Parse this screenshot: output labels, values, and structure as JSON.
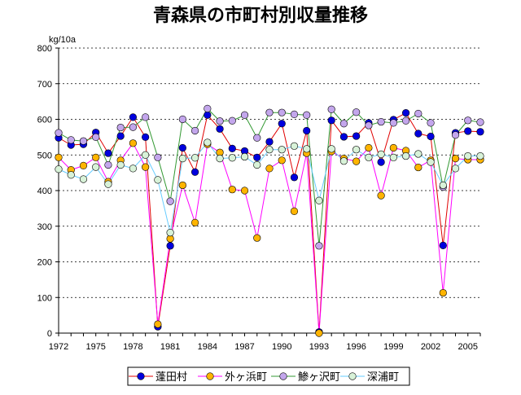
{
  "chart_data": {
    "type": "line",
    "title": "青森県の市町村別収量推移",
    "ylabel": "kg/10a",
    "ylim": [
      0,
      800
    ],
    "yticks": [
      0,
      100,
      200,
      300,
      400,
      500,
      600,
      700,
      800
    ],
    "xlim": [
      1972,
      2006
    ],
    "xticks": [
      1972,
      1975,
      1978,
      1981,
      1984,
      1987,
      1990,
      1993,
      1996,
      1999,
      2002,
      2005
    ],
    "x": [
      1972,
      1973,
      1974,
      1975,
      1976,
      1977,
      1978,
      1979,
      1980,
      1981,
      1982,
      1983,
      1984,
      1985,
      1986,
      1987,
      1988,
      1989,
      1990,
      1991,
      1992,
      1993,
      1994,
      1995,
      1996,
      1997,
      1998,
      1999,
      2000,
      2001,
      2002,
      2003,
      2004,
      2005,
      2006
    ],
    "series": [
      {
        "name": "蓬田村",
        "color": "#e00000",
        "marker": "#0000dd",
        "values": [
          548,
          528,
          530,
          563,
          505,
          553,
          606,
          550,
          18,
          245,
          520,
          452,
          612,
          573,
          518,
          511,
          493,
          537,
          588,
          437,
          568,
          3,
          597,
          551,
          553,
          590,
          480,
          599,
          618,
          560,
          552,
          246,
          562,
          567,
          565
        ]
      },
      {
        "name": "外ヶ浜町",
        "color": "#ff00ff",
        "marker": "#ffb400",
        "values": [
          493,
          458,
          470,
          493,
          425,
          485,
          533,
          466,
          25,
          265,
          415,
          310,
          530,
          507,
          403,
          400,
          267,
          462,
          485,
          342,
          505,
          0,
          510,
          490,
          482,
          520,
          386,
          520,
          512,
          465,
          485,
          113,
          490,
          487,
          487
        ]
      },
      {
        "name": "鯵ヶ沢町",
        "color": "#339933",
        "marker": "#c3a6ec",
        "values": [
          562,
          542,
          539,
          550,
          472,
          577,
          578,
          606,
          493,
          370,
          600,
          568,
          630,
          595,
          596,
          612,
          548,
          619,
          619,
          614,
          612,
          245,
          628,
          588,
          620,
          583,
          593,
          590,
          596,
          616,
          590,
          410,
          556,
          597,
          592
        ]
      },
      {
        "name": "深浦町",
        "color": "#66ccff",
        "marker": "#d8f2d8",
        "values": [
          460,
          444,
          432,
          466,
          418,
          472,
          462,
          500,
          430,
          282,
          490,
          492,
          535,
          490,
          492,
          495,
          472,
          515,
          515,
          525,
          517,
          372,
          517,
          483,
          515,
          493,
          502,
          493,
          497,
          503,
          480,
          415,
          462,
          497,
          497
        ]
      }
    ],
    "legend_position": "bottom"
  }
}
